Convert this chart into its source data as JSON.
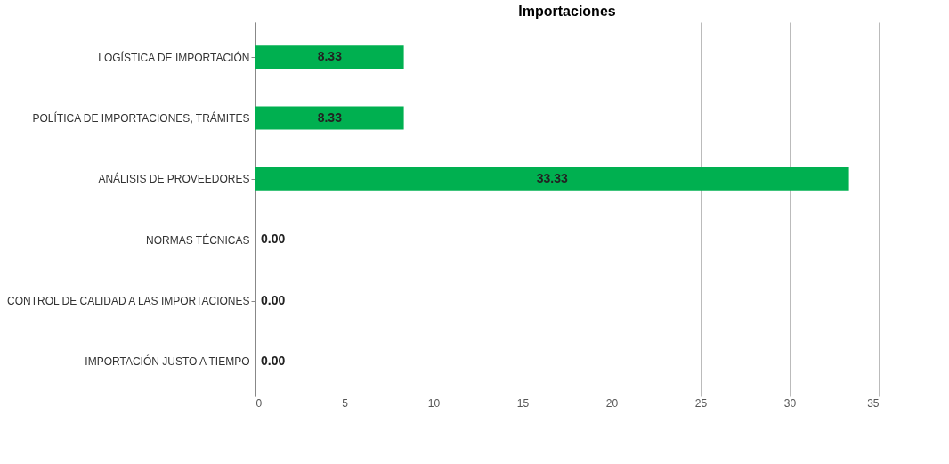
{
  "chart_data": {
    "type": "bar",
    "orientation": "horizontal",
    "title": "Importaciones",
    "categories": [
      "LOGÍSTICA DE IMPORTACIÓN",
      "POLÍTICA DE IMPORTACIONES, TRÁMITES",
      "ANÁLISIS DE PROVEEDORES",
      "NORMAS TÉCNICAS",
      "CONTROL DE CALIDAD A LAS IMPORTACIONES",
      "IMPORTACIÓN JUSTO A TIEMPO"
    ],
    "values": [
      8.33,
      8.33,
      33.33,
      0.0,
      0.0,
      0.0
    ],
    "value_labels": [
      "8.33",
      "8.33",
      "33.33",
      "0.00",
      "0.00",
      "0.00"
    ],
    "color": "#00b050",
    "xlim": [
      0,
      35
    ],
    "xticks": [
      0,
      5,
      10,
      15,
      20,
      25,
      30,
      35
    ],
    "grid": "x"
  }
}
